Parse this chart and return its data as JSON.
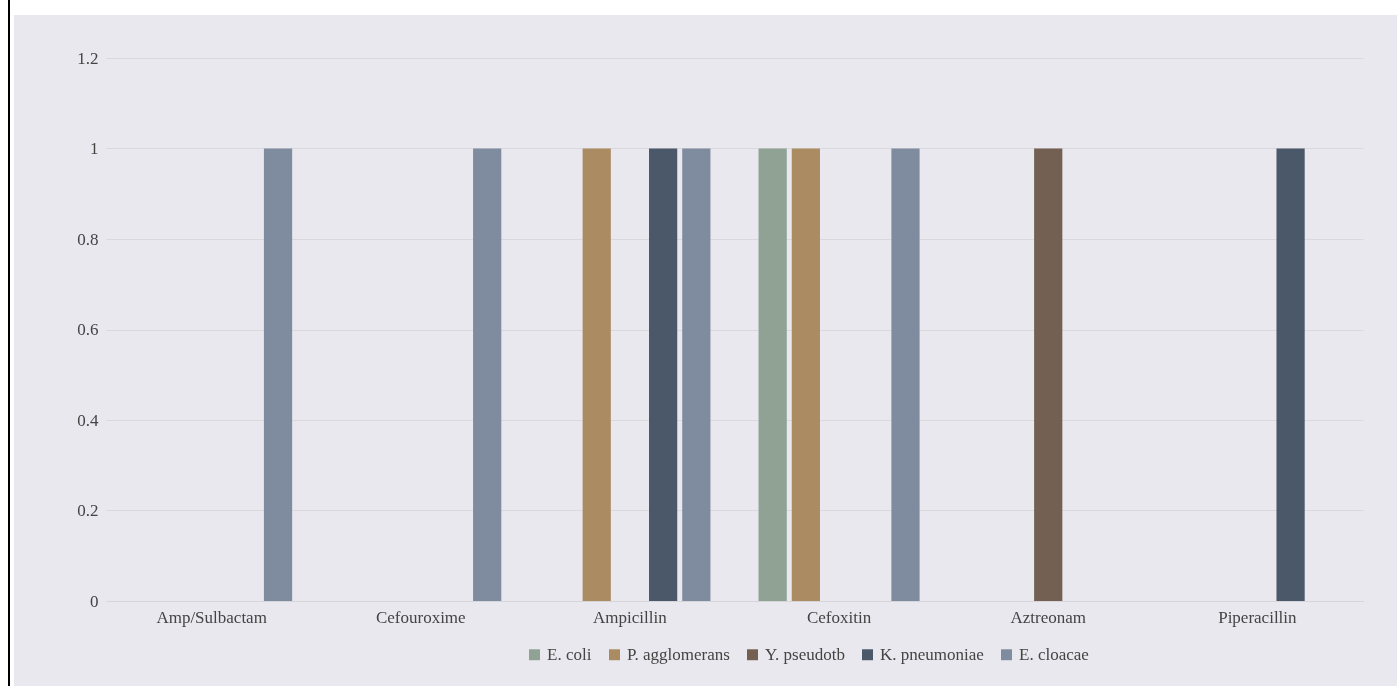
{
  "chart_data": {
    "type": "bar",
    "categories": [
      "Amp/Sulbactam",
      "Cefouroxime",
      "Ampicillin",
      "Cefoxitin",
      "Aztreonam",
      "Piperacillin"
    ],
    "series": [
      {
        "name": "E. coli",
        "color": "#8fa294",
        "values": [
          0,
          0,
          0,
          1,
          0,
          0
        ]
      },
      {
        "name": "P. agglomerans",
        "color": "#ab8c62",
        "values": [
          0,
          0,
          1,
          1,
          0,
          0
        ]
      },
      {
        "name": "Y. pseudotb",
        "color": "#745f53",
        "values": [
          0,
          0,
          0,
          0,
          1,
          0
        ]
      },
      {
        "name": "K. pneumoniae",
        "color": "#4a5869",
        "values": [
          0,
          0,
          1,
          0,
          0,
          1
        ]
      },
      {
        "name": "E. cloacae",
        "color": "#7f8c9f",
        "values": [
          1,
          1,
          1,
          1,
          0,
          0
        ]
      }
    ],
    "ylim": [
      0,
      1.2
    ],
    "yticks": [
      0,
      0.2,
      0.4,
      0.6,
      0.8,
      1,
      1.2
    ],
    "grid": "y",
    "legend": "bottom"
  }
}
